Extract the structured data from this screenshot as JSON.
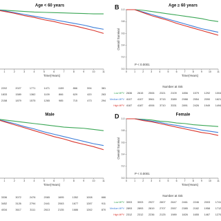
{
  "chart_data": [
    {
      "type": "line",
      "title": "Age < 60 years",
      "x": [
        0,
        1,
        2,
        3,
        4,
        5,
        6,
        7,
        8,
        9,
        10,
        11
      ],
      "xlim": [
        0,
        11
      ],
      "xticks": [
        1,
        2,
        3,
        4,
        5,
        6,
        7,
        8,
        9,
        10,
        11
      ],
      "xlabel": "Time(Years)",
      "ylim": [
        0,
        1
      ],
      "legend": false,
      "series": [
        {
          "name": "Low MPV",
          "color": "#3aa655",
          "values": [
            1,
            0.99,
            0.98,
            0.97,
            0.96,
            0.955,
            0.95,
            0.945,
            0.94,
            0.935,
            0.93,
            0.93
          ],
          "at_risk": [
            2202,
            2027,
            1771,
            1471,
            1159,
            866,
            594,
            381
          ]
        },
        {
          "name": "Medium MPV",
          "color": "#3b7dd8",
          "values": [
            1,
            0.98,
            0.95,
            0.92,
            0.89,
            0.86,
            0.83,
            0.8,
            0.77,
            0.74,
            0.7,
            0.67
          ],
          "at_risk": [
            1833,
            1589,
            1362,
            1109,
            866,
            629,
            420,
            263
          ]
        },
        {
          "name": "High MPV",
          "color": "#d9342b",
          "values": [
            1,
            0.97,
            0.94,
            0.9,
            0.87,
            0.83,
            0.8,
            0.76,
            0.73,
            0.69,
            0.65,
            0.6
          ],
          "at_risk": [
            2158,
            1879,
            1575,
            1265,
            985,
            715,
            473,
            294
          ]
        }
      ]
    },
    {
      "type": "line",
      "panel": "B",
      "title": "Age ≥ 60 years",
      "x": [
        0,
        1,
        2,
        3,
        4,
        5,
        6,
        7,
        8,
        9,
        10,
        11
      ],
      "xlim": [
        0,
        11
      ],
      "xticks": [
        0,
        1,
        2,
        3,
        4,
        5,
        6,
        7,
        8,
        9,
        10,
        11
      ],
      "xlabel": "Time(Years)",
      "ylabel": "Overall Survival",
      "ylim": [
        0,
        1
      ],
      "yticks": [
        {
          "value": 0,
          "label": "0.0"
        },
        0.2,
        0.4,
        0.6,
        0.8,
        {
          "value": 1,
          "label": "1.0"
        }
      ],
      "p_value": "P < 0.0001",
      "risk_title": "Number at risk",
      "legend": true,
      "series": [
        {
          "name": "Low MPV",
          "color": "#3aa655",
          "values": [
            1,
            1,
            0.99,
            0.97,
            0.95,
            0.93,
            0.91,
            0.89,
            0.87,
            0.85,
            0.82,
            0.8
          ],
          "at_risk": [
            2636,
            2615,
            2506,
            2321,
            2109,
            1856,
            1579,
            1292,
            1004
          ]
        },
        {
          "name": "Medium MPV",
          "color": "#3b7dd8",
          "values": [
            1,
            1,
            0.96,
            0.92,
            0.88,
            0.84,
            0.8,
            0.76,
            0.72,
            0.68,
            0.65,
            0.62
          ],
          "at_risk": [
            4107,
            4107,
            3961,
            3715,
            3389,
            2988,
            2554,
            2090,
            1621
          ]
        },
        {
          "name": "High MPV",
          "color": "#d9342b",
          "values": [
            1,
            1,
            0.95,
            0.9,
            0.86,
            0.82,
            0.77,
            0.73,
            0.69,
            0.65,
            0.61,
            0.57
          ],
          "at_risk": [
            4187,
            4187,
            4006,
            3710,
            3331,
            2891,
            2426,
            1949,
            1494
          ]
        }
      ]
    },
    {
      "type": "line",
      "title": "Male",
      "x": [
        0,
        1,
        2,
        3,
        4,
        5,
        6,
        7,
        8,
        9,
        10,
        11
      ],
      "xlim": [
        0,
        11
      ],
      "xticks": [
        1,
        2,
        3,
        4,
        5,
        6,
        7,
        8,
        9,
        10,
        11
      ],
      "xlabel": "Time(Years)",
      "ylim": [
        0,
        1
      ],
      "legend": false,
      "series": [
        {
          "name": "Low MPV",
          "color": "#3aa655",
          "values": [
            1,
            0.98,
            0.96,
            0.94,
            0.92,
            0.9,
            0.88,
            0.86,
            0.85,
            0.84,
            0.82,
            0.8
          ],
          "at_risk": [
            3336,
            3072,
            2476,
            2065,
            1695,
            1352,
            1008,
            666
          ]
        },
        {
          "name": "Medium MPV",
          "color": "#3b7dd8",
          "values": [
            1,
            0.96,
            0.92,
            0.87,
            0.83,
            0.78,
            0.74,
            0.7,
            0.66,
            0.62,
            0.58,
            0.55
          ],
          "at_risk": [
            3452,
            3126,
            2794,
            2441,
            2063,
            1677,
            1287,
            911
          ]
        },
        {
          "name": "High MPV",
          "color": "#d9342b",
          "values": [
            1,
            0.95,
            0.9,
            0.85,
            0.8,
            0.75,
            0.7,
            0.66,
            0.61,
            0.57,
            0.53,
            0.48
          ],
          "at_risk": [
            4034,
            3617,
            3111,
            2613,
            2135,
            1686,
            1262,
            870
          ]
        }
      ]
    },
    {
      "type": "line",
      "panel": "D",
      "title": "Female",
      "x": [
        0,
        1,
        2,
        3,
        4,
        5,
        6,
        7,
        8,
        9,
        10,
        11
      ],
      "xlim": [
        0,
        11
      ],
      "xticks": [
        0,
        1,
        2,
        3,
        4,
        5,
        6,
        7,
        8,
        9,
        10,
        11
      ],
      "xlabel": "Time(Years)",
      "ylabel": "Overall Survival",
      "ylim": [
        0,
        1
      ],
      "yticks": [
        {
          "value": 0,
          "label": "0.0"
        },
        0.2,
        0.4,
        0.6,
        0.8,
        {
          "value": 1,
          "label": "1.0"
        }
      ],
      "p_value": "P < 0.0001",
      "risk_title": "Number at risk",
      "legend": true,
      "series": [
        {
          "name": "Low MPV",
          "color": "#3aa655",
          "values": [
            1,
            1,
            0.99,
            0.98,
            0.96,
            0.95,
            0.93,
            0.92,
            0.9,
            0.89,
            0.88,
            0.87
          ],
          "at_risk": [
            3003,
            3003,
            2927,
            2807,
            2647,
            2461,
            2246,
            2003,
            1741
          ]
        },
        {
          "name": "Medium MPV",
          "color": "#3b7dd8",
          "values": [
            1,
            1,
            0.98,
            0.96,
            0.94,
            0.91,
            0.89,
            0.86,
            0.84,
            0.81,
            0.79,
            0.77
          ],
          "at_risk": [
            2893,
            2893,
            2819,
            2707,
            2557,
            2385,
            2182,
            1958,
            1712
          ]
        },
        {
          "name": "High MPV",
          "color": "#d9342b",
          "values": [
            1,
            1,
            0.97,
            0.95,
            0.92,
            0.89,
            0.86,
            0.83,
            0.8,
            0.77,
            0.75,
            0.72
          ],
          "at_risk": [
            2312,
            2312,
            2236,
            2125,
            1989,
            1826,
            1655,
            1467,
            1270
          ]
        }
      ]
    }
  ]
}
